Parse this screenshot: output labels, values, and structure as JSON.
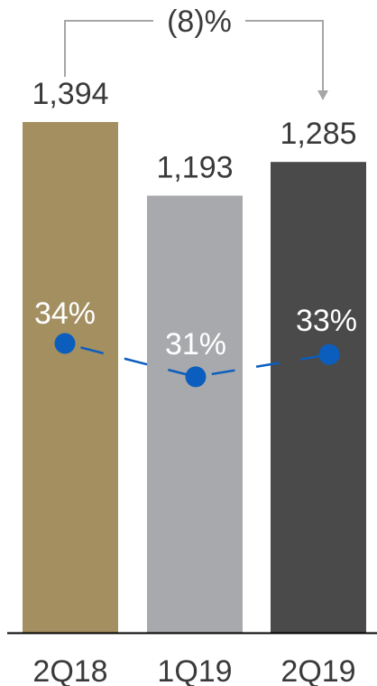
{
  "chart_data": {
    "type": "bar",
    "title": "",
    "xlabel": "",
    "ylabel": "",
    "categories": [
      "2Q18",
      "1Q19",
      "2Q19"
    ],
    "series": [
      {
        "values": [
          1394,
          1193,
          1285
        ],
        "value_labels": [
          "1,394",
          "1,193",
          "1,285"
        ]
      },
      {
        "values": [
          34,
          31,
          33
        ],
        "value_labels": [
          "34%",
          "31%",
          "33%"
        ],
        "chart_type": "line",
        "style": "dashed-with-markers"
      }
    ],
    "ylim": [
      0,
      1394
    ],
    "annotation": {
      "text": "(8)%",
      "from": "2Q18",
      "to": "2Q19"
    },
    "colors": {
      "bars": [
        "#a38f60",
        "#a8a9ad",
        "#4a4a4a"
      ],
      "line": "#0b5ebd",
      "connector": "#a6a6a6",
      "axis": "#000000",
      "text": "#3a3a3a"
    }
  }
}
